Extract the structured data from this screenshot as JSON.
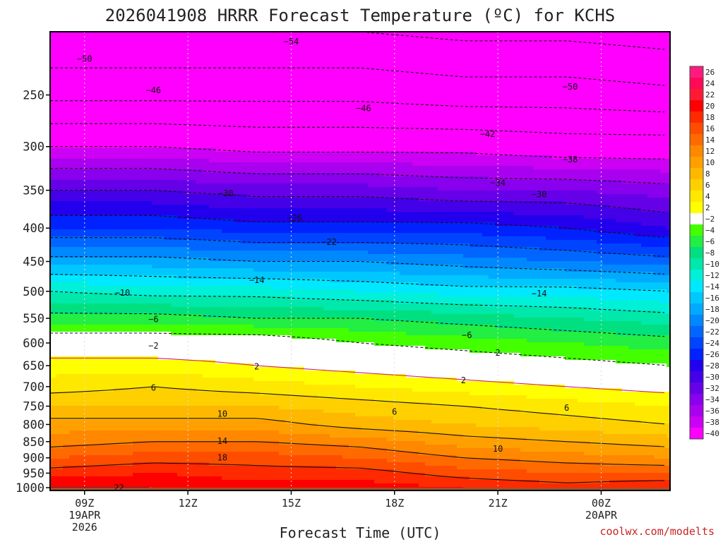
{
  "chart_data": {
    "type": "heatmap",
    "title": "2026041908 HRRR Forecast Temperature (ºC) for KCHS",
    "xlabel": "Forecast Time (UTC)",
    "ylabel": "",
    "credit": "coolwx.com/modelts",
    "x_ticks": [
      {
        "label": "09Z",
        "sub1": "19APR",
        "sub2": "2026",
        "hour": 9
      },
      {
        "label": "12Z",
        "sub1": "",
        "sub2": "",
        "hour": 12
      },
      {
        "label": "15Z",
        "sub1": "",
        "sub2": "",
        "hour": 15
      },
      {
        "label": "18Z",
        "sub1": "",
        "sub2": "",
        "hour": 18
      },
      {
        "label": "21Z",
        "sub1": "",
        "sub2": "",
        "hour": 21
      },
      {
        "label": "00Z",
        "sub1": "20APR",
        "sub2": "",
        "hour": 24
      }
    ],
    "x_range_hours": [
      8,
      26
    ],
    "y_axis": {
      "unit_level": "hPa",
      "scale": "log-pressure",
      "range": [
        1010,
        200
      ],
      "ticks": [
        250,
        300,
        350,
        400,
        450,
        500,
        550,
        600,
        650,
        700,
        750,
        800,
        850,
        900,
        950,
        1000
      ]
    },
    "colorbar": {
      "levels": [
        26,
        24,
        22,
        20,
        18,
        16,
        14,
        12,
        10,
        8,
        6,
        4,
        2,
        -2,
        -4,
        -6,
        -8,
        -10,
        -12,
        -14,
        -16,
        -18,
        -20,
        -22,
        -24,
        -26,
        -28,
        -30,
        -32,
        -34,
        -36,
        -38,
        -40
      ],
      "labels": [
        "26",
        "24",
        "22",
        "20",
        "18",
        "16",
        "14",
        "12",
        "10",
        "8",
        "6",
        "4",
        "2",
        "−2",
        "−4",
        "−6",
        "−8",
        "−10",
        "−12",
        "−14",
        "−16",
        "−18",
        "−20",
        "−22",
        "−24",
        "−26",
        "−28",
        "−30",
        "−32",
        "−34",
        "−36",
        "−38",
        "−40"
      ],
      "colors": [
        "#ff1a80",
        "#ff0a55",
        "#ff1a33",
        "#ff0000",
        "#ff2a00",
        "#ff4d00",
        "#ff6a00",
        "#ff8800",
        "#ffa000",
        "#ffb800",
        "#ffd000",
        "#ffe800",
        "#ffff00",
        "#ffffff",
        "#44ff00",
        "#22ee44",
        "#00e080",
        "#00e8aa",
        "#00f0d8",
        "#00e8ff",
        "#00c8ff",
        "#00aaff",
        "#0088ff",
        "#0066ff",
        "#0044ff",
        "#0022ff",
        "#2200ee",
        "#4400e8",
        "#6600e8",
        "#8800ee",
        "#aa00f0",
        "#cc00f4",
        "#ff00ff"
      ]
    },
    "profile_levels_hPa": [
      1000,
      950,
      900,
      850,
      800,
      750,
      700,
      650,
      600,
      550,
      500,
      450,
      400,
      350,
      300,
      250,
      200
    ],
    "series": [
      {
        "hour": 8,
        "temps_C": [
          22,
          19,
          16,
          13,
          11,
          8,
          5,
          3,
          0,
          -5,
          -10,
          -17,
          -24,
          -30,
          -38,
          -47,
          -54
        ]
      },
      {
        "hour": 11,
        "temps_C": [
          22,
          20,
          17,
          14,
          11,
          8,
          6,
          3,
          0,
          -5,
          -11,
          -17,
          -24,
          -30,
          -38,
          -47,
          -54
        ]
      },
      {
        "hour": 14,
        "temps_C": [
          21,
          19,
          17,
          14,
          11,
          8,
          5,
          2,
          0,
          -6,
          -11,
          -18,
          -25,
          -31,
          -39,
          -47,
          -54
        ]
      },
      {
        "hour": 17,
        "temps_C": [
          21,
          19,
          16,
          13,
          9,
          7,
          4,
          1,
          -2,
          -6,
          -12,
          -18,
          -25,
          -31,
          -39,
          -47,
          -54
        ]
      },
      {
        "hour": 20,
        "temps_C": [
          20,
          17,
          14,
          11,
          8,
          6,
          3,
          0,
          -3,
          -7,
          -13,
          -19,
          -25,
          -32,
          -39,
          -48,
          -55
        ]
      },
      {
        "hour": 23,
        "temps_C": [
          19,
          16,
          13,
          10,
          7,
          5,
          2,
          -1,
          -4,
          -8,
          -13,
          -20,
          -26,
          -32,
          -40,
          -48,
          -55
        ]
      },
      {
        "hour": 26,
        "temps_C": [
          20,
          16,
          12,
          9,
          6,
          4,
          1,
          -2,
          -5,
          -9,
          -14,
          -21,
          -28,
          -33,
          -40,
          -49,
          -56
        ]
      }
    ],
    "contour_labels": [
      {
        "text": "−54",
        "hour": 15.0,
        "p": 207
      },
      {
        "text": "−50",
        "hour": 9.0,
        "p": 220
      },
      {
        "text": "−50",
        "hour": 23.1,
        "p": 243
      },
      {
        "text": "−46",
        "hour": 11.0,
        "p": 246
      },
      {
        "text": "−46",
        "hour": 17.1,
        "p": 262
      },
      {
        "text": "−42",
        "hour": 20.7,
        "p": 287
      },
      {
        "text": "−38",
        "hour": 23.1,
        "p": 314
      },
      {
        "text": "−34",
        "hour": 21.0,
        "p": 341
      },
      {
        "text": "−30",
        "hour": 13.1,
        "p": 354
      },
      {
        "text": "−30",
        "hour": 22.2,
        "p": 355
      },
      {
        "text": "−26",
        "hour": 15.1,
        "p": 386
      },
      {
        "text": "−22",
        "hour": 16.1,
        "p": 420
      },
      {
        "text": "−14",
        "hour": 14.0,
        "p": 481
      },
      {
        "text": "−14",
        "hour": 22.2,
        "p": 504
      },
      {
        "text": "−10",
        "hour": 10.1,
        "p": 503
      },
      {
        "text": "−6",
        "hour": 11.0,
        "p": 552
      },
      {
        "text": "−6",
        "hour": 20.1,
        "p": 584
      },
      {
        "text": "−2",
        "hour": 11.0,
        "p": 606
      },
      {
        "text": "2",
        "hour": 21.0,
        "p": 621
      },
      {
        "text": "2",
        "hour": 14.0,
        "p": 652
      },
      {
        "text": "2",
        "hour": 20.0,
        "p": 685
      },
      {
        "text": "6",
        "hour": 11.0,
        "p": 703
      },
      {
        "text": "6",
        "hour": 18.0,
        "p": 765
      },
      {
        "text": "6",
        "hour": 23.0,
        "p": 755
      },
      {
        "text": "10",
        "hour": 13.0,
        "p": 771
      },
      {
        "text": "10",
        "hour": 21.0,
        "p": 872
      },
      {
        "text": "14",
        "hour": 13.0,
        "p": 848
      },
      {
        "text": "18",
        "hour": 13.0,
        "p": 900
      },
      {
        "text": "22",
        "hour": 10.0,
        "p": 1000
      }
    ],
    "ground_color": "#a0522d",
    "grid": "dotted vertical and horizontal",
    "legend": "right colorbar"
  }
}
